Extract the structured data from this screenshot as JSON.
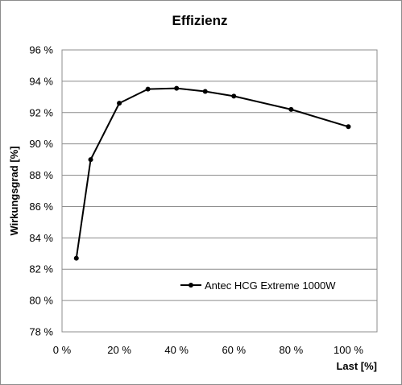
{
  "chart_data": {
    "type": "line",
    "title": "Effizienz",
    "xlabel": "Last [%]",
    "ylabel": "Wirkungsgrad [%]",
    "xlim": [
      0,
      110
    ],
    "ylim": [
      78,
      96
    ],
    "x_ticks": [
      0,
      20,
      40,
      60,
      80,
      100
    ],
    "y_ticks": [
      78,
      80,
      82,
      84,
      86,
      88,
      90,
      92,
      94,
      96
    ],
    "x_tick_labels": [
      "0 %",
      "20 %",
      "40 %",
      "60 %",
      "80 %",
      "100 %"
    ],
    "y_tick_labels": [
      "78 %",
      "80 %",
      "82 %",
      "84 %",
      "86 %",
      "88 %",
      "90 %",
      "92 %",
      "94 %",
      "96 %"
    ],
    "grid": "horizontal",
    "legend_position": "bottom-right",
    "series": [
      {
        "name": "Antec HCG Extreme 1000W",
        "color": "#000000",
        "x": [
          5,
          10,
          20,
          30,
          40,
          50,
          60,
          80,
          100
        ],
        "y": [
          82.7,
          89.0,
          92.6,
          93.5,
          93.55,
          93.35,
          93.05,
          92.2,
          91.1
        ]
      }
    ]
  }
}
